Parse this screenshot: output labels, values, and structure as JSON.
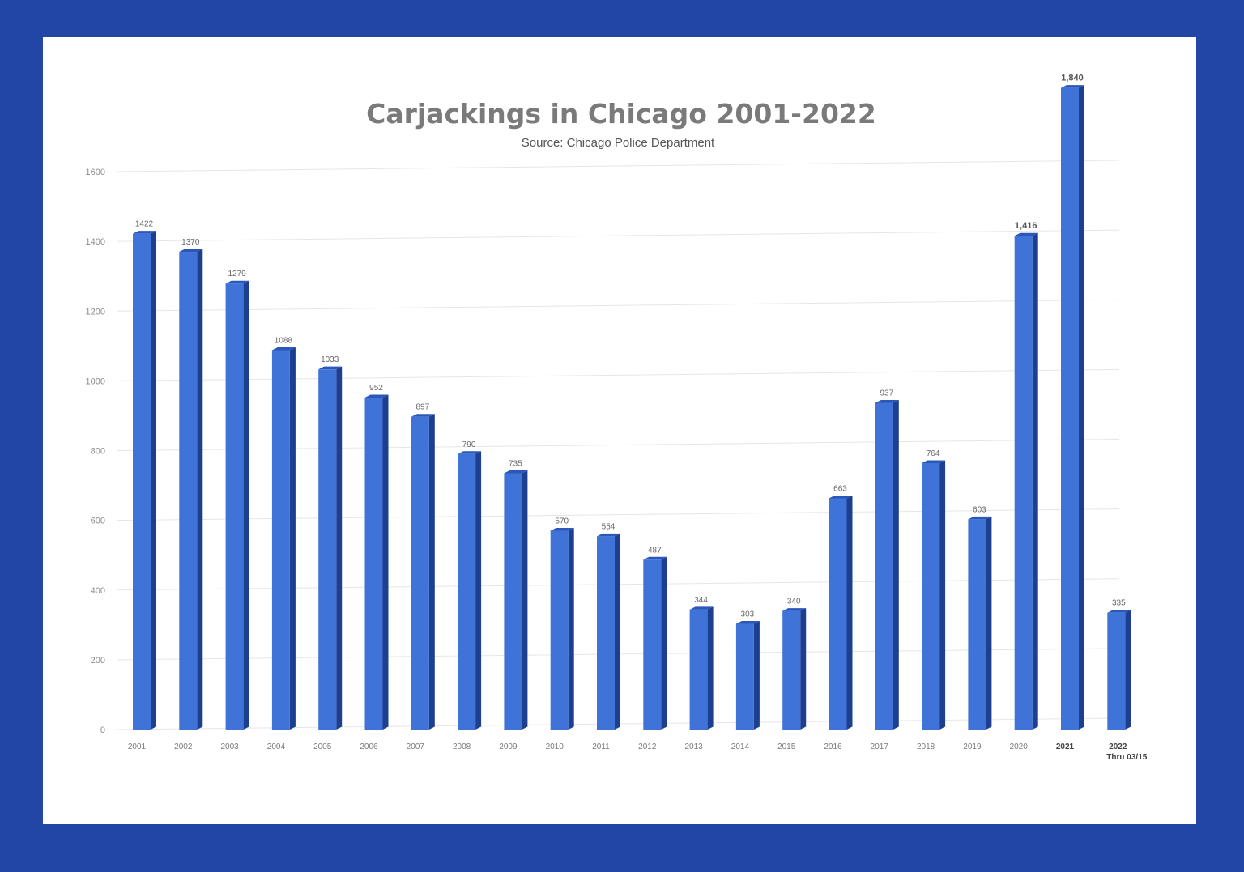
{
  "chart_data": {
    "type": "bar",
    "title": "Carjackings in Chicago 2001-2022",
    "subtitle": "Source: Chicago Police Department",
    "xlabel": "",
    "ylabel": "",
    "ylim": [
      0,
      1600
    ],
    "yticks": [
      0,
      200,
      400,
      600,
      800,
      1000,
      1200,
      1400,
      1600
    ],
    "grid": true,
    "categories": [
      "2001",
      "2002",
      "2003",
      "2004",
      "2005",
      "2006",
      "2007",
      "2008",
      "2009",
      "2010",
      "2011",
      "2012",
      "2013",
      "2014",
      "2015",
      "2016",
      "2017",
      "2018",
      "2019",
      "2020",
      "2021",
      "2022"
    ],
    "category_sublabels": {
      "2022": "Thru 03/15"
    },
    "values": [
      1422,
      1370,
      1279,
      1088,
      1033,
      952,
      897,
      790,
      735,
      570,
      554,
      487,
      344,
      303,
      340,
      663,
      937,
      764,
      603,
      1416,
      1840,
      335
    ],
    "data_labels": [
      "1422",
      "1370",
      "1279",
      "1088",
      "1033",
      "952",
      "897",
      "790",
      "735",
      "570",
      "554",
      "487",
      "344",
      "303",
      "340",
      "663",
      "937",
      "764",
      "603",
      "1,416",
      "1,840",
      "335"
    ],
    "colors": {
      "bar": "#3f73d8",
      "bar_side": "#1d3f8f",
      "bar_top": "#2b57b8",
      "frame": "#2146a6"
    }
  }
}
